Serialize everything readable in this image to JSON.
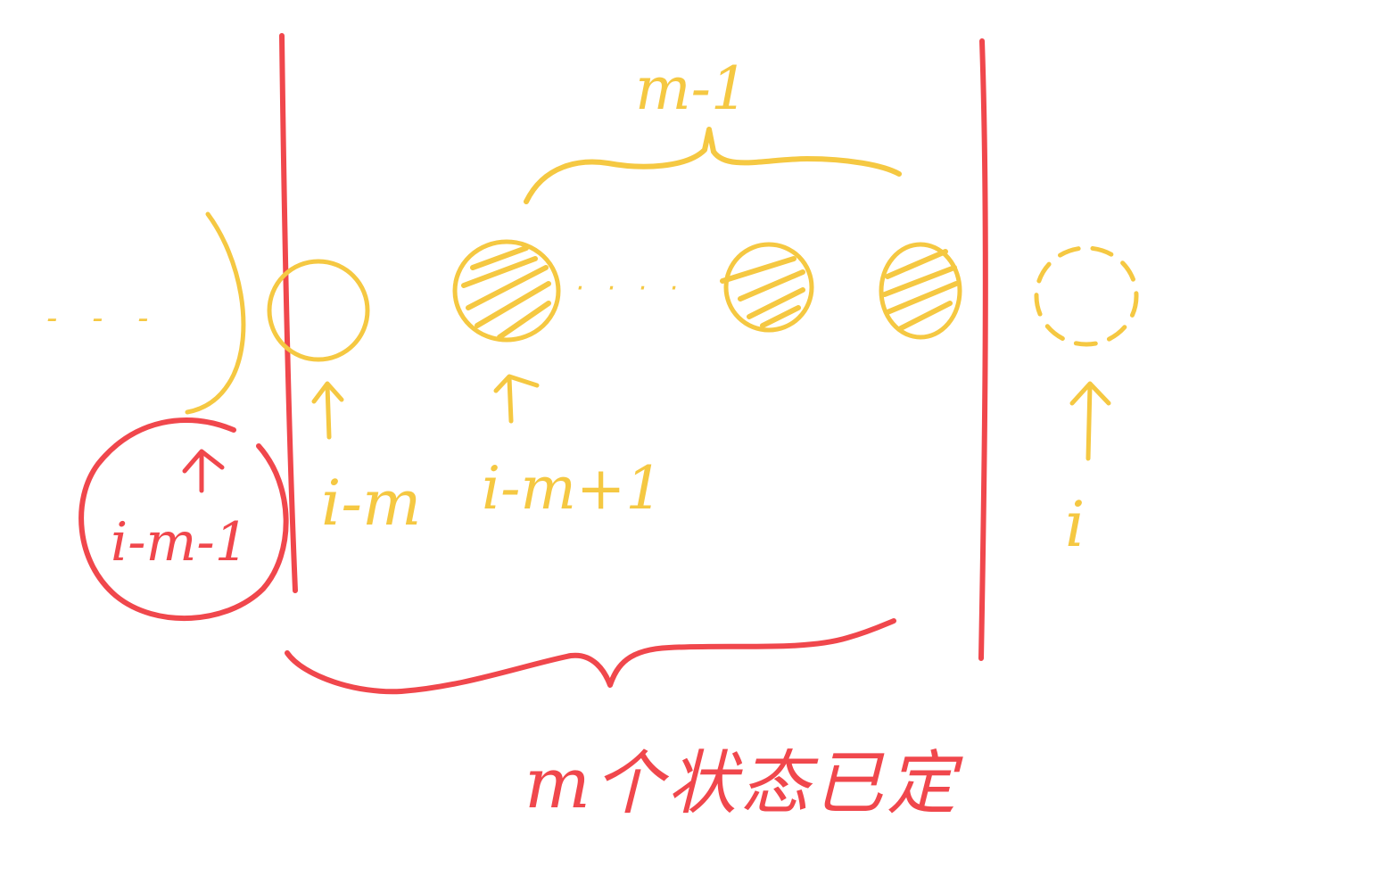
{
  "colors": {
    "yellow": "#f5c842",
    "red": "#f0474c",
    "background": "#ffffff"
  },
  "labels": {
    "top_brace": "m-1",
    "prev_state": "i-m-1",
    "state_i_minus_m": "i-m",
    "state_i_minus_m_plus_1": "i-m+1",
    "state_i": "i",
    "bottom_caption": "m个状态已定",
    "leading_dots": "- - -",
    "middle_dots": "· · · ·"
  }
}
